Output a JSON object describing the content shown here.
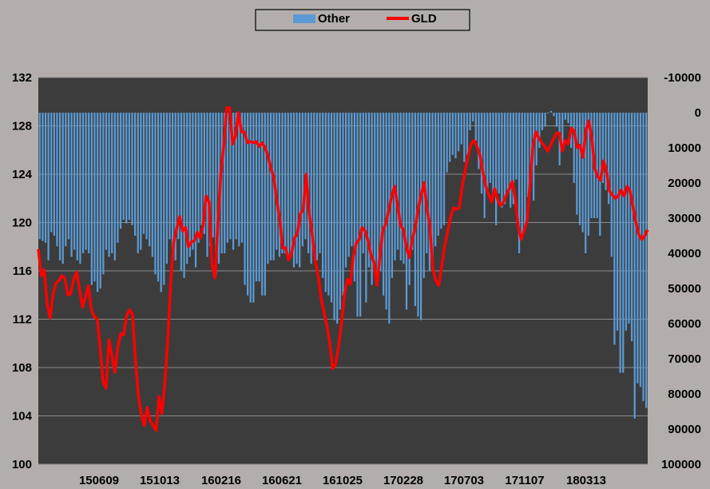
{
  "chart_data": {
    "type": "bar+line",
    "legend": {
      "position": "top",
      "entries": [
        "Other",
        "GLD"
      ]
    },
    "colors": {
      "Other": "#5b9bd5",
      "GLD": "#ff0000",
      "plot_bg": "#3c3c3c",
      "figure_bg": "#b3aeab",
      "grid": "#8c8c8c"
    },
    "x_tick_labels": [
      "150609",
      "151013",
      "160216",
      "160621",
      "161025",
      "170228",
      "170703",
      "171107",
      "180313"
    ],
    "left_axis": {
      "ylim": [
        100,
        132
      ],
      "ticks": [
        "100",
        "104",
        "108",
        "112",
        "116",
        "120",
        "124",
        "128",
        "132"
      ]
    },
    "right_axis": {
      "ylim": [
        -10000,
        100000
      ],
      "inverted": true,
      "ticks": [
        "-10000",
        "0",
        "10000",
        "20000",
        "30000",
        "40000",
        "50000",
        "60000",
        "70000",
        "80000",
        "90000",
        "100000"
      ]
    },
    "grid": true,
    "series": [
      {
        "name": "Other",
        "type": "bar",
        "axis": "right",
        "values": [
          36000,
          36500,
          37000,
          42000,
          34000,
          35000,
          38000,
          42000,
          43000,
          38000,
          36000,
          41000,
          39000,
          42000,
          43000,
          40000,
          39000,
          40000,
          49000,
          48000,
          51000,
          50000,
          46000,
          39000,
          41000,
          40000,
          42000,
          37000,
          33000,
          30500,
          31500,
          30500,
          32000,
          35000,
          40000,
          39000,
          34500,
          36000,
          38000,
          41000,
          46000,
          48000,
          51000,
          49000,
          43000,
          36000,
          39000,
          42000,
          36000,
          45000,
          47000,
          43000,
          41000,
          39000,
          44000,
          37000,
          32000,
          34500,
          41000,
          38000,
          35500,
          46000,
          43000,
          40000,
          40000,
          37000,
          36000,
          39000,
          36000,
          38000,
          37000,
          49000,
          52000,
          54000,
          54000,
          48000,
          48000,
          52000,
          52000,
          43000,
          42000,
          42000,
          39000,
          41000,
          40000,
          40000,
          41000,
          40000,
          44000,
          43000,
          44000,
          38000,
          36000,
          40000,
          43000,
          40000,
          42000,
          40000,
          47000,
          51000,
          52000,
          54000,
          59000,
          60000,
          56000,
          52000,
          44000,
          41000,
          38000,
          48000,
          58000,
          58000,
          40000,
          54000,
          44000,
          49000,
          44000,
          46000,
          45000,
          52000,
          56000,
          60000,
          47000,
          42000,
          39000,
          42000,
          43000,
          56000,
          49000,
          39000,
          55000,
          58000,
          59000,
          47000,
          40000,
          45000,
          43000,
          38000,
          35000,
          33000,
          32000,
          17000,
          14000,
          12000,
          13000,
          11000,
          9000,
          14000,
          12000,
          5000,
          2500,
          8000,
          16000,
          23000,
          30000,
          22000,
          20000,
          23000,
          32000,
          23000,
          27000,
          26000,
          22000,
          27000,
          26000,
          19000,
          40000,
          36000,
          33000,
          24000,
          20000,
          25000,
          15000,
          10000,
          5000,
          4000,
          0,
          -500,
          1000,
          4000,
          15000,
          10000,
          2000,
          3000,
          10000,
          20000,
          29000,
          32000,
          34000,
          40000,
          35000,
          30000,
          30000,
          30000,
          35000,
          20000,
          22000,
          26000,
          41000,
          66000,
          62000,
          74000,
          74000,
          62000,
          60000,
          65000,
          87000,
          77000,
          78000,
          82000,
          84000
        ]
      },
      {
        "name": "GLD",
        "type": "line",
        "axis": "left",
        "values": [
          117.8,
          115.6,
          116.1,
          113.2,
          112.1,
          114.1,
          115.0,
          115.2,
          115.6,
          115.4,
          114.0,
          114.1,
          115.3,
          115.9,
          114.5,
          113.0,
          113.8,
          114.8,
          112.8,
          112.2,
          112.0,
          109.6,
          106.8,
          106.3,
          110.3,
          109.0,
          107.6,
          109.7,
          110.8,
          110.7,
          112.3,
          112.8,
          112.4,
          108.6,
          105.6,
          104.1,
          103.2,
          104.7,
          103.6,
          103.2,
          102.8,
          105.6,
          104.2,
          106.8,
          110.4,
          115.2,
          118.4,
          119.5,
          120.5,
          119.3,
          119.6,
          118.0,
          118.4,
          118.5,
          119.2,
          118.7,
          119.8,
          122.2,
          121.7,
          116.6,
          115.4,
          119.9,
          124.1,
          126.4,
          129.5,
          129.5,
          126.5,
          127.2,
          129.1,
          127.5,
          127.5,
          126.6,
          126.7,
          126.6,
          126.7,
          126.3,
          126.6,
          126.2,
          125.5,
          124.5,
          123.7,
          121.8,
          120.3,
          117.9,
          117.9,
          116.9,
          117.4,
          118.7,
          119.1,
          120.7,
          121.1,
          124.0,
          120.8,
          119.1,
          116.9,
          115.7,
          113.8,
          112.6,
          111.5,
          110.0,
          107.9,
          108.3,
          109.8,
          111.7,
          114.1,
          115.3,
          114.9,
          117.2,
          118.3,
          118.6,
          119.6,
          119.3,
          118.5,
          117.3,
          116.7,
          114.8,
          117.1,
          119.3,
          119.9,
          121.0,
          122.1,
          123.0,
          121.5,
          119.8,
          119.4,
          118.0,
          117.1,
          118.6,
          119.5,
          121.1,
          122.2,
          123.3,
          121.2,
          119.7,
          116.2,
          115.2,
          114.8,
          116.3,
          118.0,
          119.2,
          120.4,
          121.2,
          121.1,
          121.2,
          123.0,
          124.3,
          125.5,
          126.5,
          126.8,
          126.3,
          125.6,
          124.2,
          123.0,
          122.3,
          121.7,
          122.8,
          121.9,
          121.4,
          121.7,
          122.3,
          122.8,
          123.4,
          122.0,
          119.7,
          118.6,
          119.3,
          120.1,
          123.2,
          126.3,
          127.5,
          127.0,
          126.6,
          126.3,
          125.9,
          126.4,
          126.9,
          127.4,
          127.4,
          125.9,
          126.8,
          126.5,
          127.8,
          127.6,
          126.2,
          126.4,
          125.4,
          127.6,
          128.4,
          127.0,
          124.5,
          123.8,
          123.5,
          125.1,
          124.3,
          122.6,
          122.3,
          122.0,
          122.2,
          122.7,
          122.2,
          123.0,
          122.6,
          121.3,
          120.0,
          119.0,
          118.6,
          118.9,
          119.4
        ]
      }
    ]
  }
}
